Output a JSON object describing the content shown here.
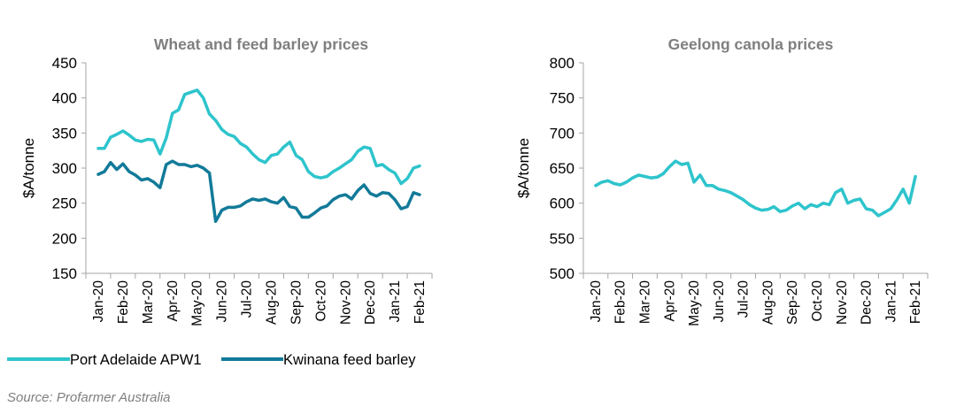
{
  "source": "Source: Profarmer Australia",
  "chart_data": [
    {
      "type": "line",
      "title": "Wheat and feed barley prices",
      "ylabel": "$A/tonne",
      "xlabel": "",
      "ylim": [
        150,
        450
      ],
      "yticks": [
        150,
        200,
        250,
        300,
        350,
        400,
        450
      ],
      "categories": [
        "Jan-20",
        "Feb-20",
        "Mar-20",
        "Apr-20",
        "May-20",
        "Jun-20",
        "Jul-20",
        "Aug-20",
        "Sep-20",
        "Oct-20",
        "Nov-20",
        "Dec-20",
        "Jan-21",
        "Feb-21"
      ],
      "legend_position": "bottom",
      "grid": false,
      "series": [
        {
          "name": "Port Adelaide APW1",
          "color": "#2ec4cc",
          "x": [
            0,
            0.25,
            0.5,
            0.75,
            1,
            1.25,
            1.5,
            1.75,
            2,
            2.25,
            2.5,
            2.75,
            3,
            3.25,
            3.5,
            3.75,
            4,
            4.25,
            4.5,
            4.75,
            5,
            5.25,
            5.5,
            5.75,
            6,
            6.25,
            6.5,
            6.75,
            7,
            7.25,
            7.5,
            7.75,
            8,
            8.25,
            8.5,
            8.75,
            9,
            9.25,
            9.5,
            9.75,
            10,
            10.25,
            10.5,
            10.75,
            11,
            11.25,
            11.5,
            11.75,
            12,
            12.25,
            12.5,
            12.75,
            13
          ],
          "values": [
            328,
            328,
            344,
            348,
            353,
            347,
            340,
            338,
            341,
            340,
            320,
            343,
            378,
            383,
            405,
            408,
            411,
            400,
            377,
            368,
            355,
            348,
            345,
            335,
            330,
            320,
            312,
            308,
            318,
            320,
            330,
            337,
            318,
            312,
            295,
            288,
            286,
            288,
            295,
            300,
            306,
            312,
            324,
            330,
            328,
            303,
            305,
            298,
            293,
            278,
            285,
            300,
            303
          ]
        },
        {
          "name": "Kwinana feed barley",
          "color": "#127a99",
          "x": [
            0,
            0.25,
            0.5,
            0.75,
            1,
            1.25,
            1.5,
            1.75,
            2,
            2.25,
            2.5,
            2.75,
            3,
            3.25,
            3.5,
            3.75,
            4,
            4.25,
            4.5,
            4.75,
            5,
            5.25,
            5.5,
            5.75,
            6,
            6.25,
            6.5,
            6.75,
            7,
            7.25,
            7.5,
            7.75,
            8,
            8.25,
            8.5,
            8.75,
            9,
            9.25,
            9.5,
            9.75,
            10,
            10.25,
            10.5,
            10.75,
            11,
            11.25,
            11.5,
            11.75,
            12,
            12.25,
            12.5,
            12.75,
            13
          ],
          "values": [
            291,
            295,
            308,
            298,
            306,
            295,
            290,
            283,
            285,
            280,
            272,
            305,
            310,
            305,
            305,
            302,
            304,
            300,
            293,
            224,
            240,
            244,
            244,
            246,
            252,
            256,
            254,
            256,
            252,
            250,
            258,
            245,
            243,
            230,
            230,
            236,
            243,
            246,
            255,
            260,
            262,
            256,
            268,
            276,
            264,
            260,
            265,
            264,
            255,
            242,
            245,
            265,
            262
          ]
        }
      ]
    },
    {
      "type": "line",
      "title": "Geelong canola prices",
      "ylabel": "$A/tonne",
      "xlabel": "",
      "ylim": [
        500,
        800
      ],
      "yticks": [
        500,
        550,
        600,
        650,
        700,
        750,
        800
      ],
      "categories": [
        "Jan-20",
        "Feb-20",
        "Mar-20",
        "Apr-20",
        "May-20",
        "Jun-20",
        "Jul-20",
        "Aug-20",
        "Sep-20",
        "Oct-20",
        "Nov-20",
        "Dec-20",
        "Jan-21",
        "Feb-21"
      ],
      "grid": false,
      "series": [
        {
          "color": "#2ec4cc",
          "x": [
            0,
            0.25,
            0.5,
            0.75,
            1,
            1.25,
            1.5,
            1.75,
            2,
            2.25,
            2.5,
            2.75,
            3,
            3.25,
            3.5,
            3.75,
            4,
            4.25,
            4.5,
            4.75,
            5,
            5.25,
            5.5,
            5.75,
            6,
            6.25,
            6.5,
            6.75,
            7,
            7.25,
            7.5,
            7.75,
            8,
            8.25,
            8.5,
            8.75,
            9,
            9.25,
            9.5,
            9.75,
            10,
            10.25,
            10.5,
            10.75,
            11,
            11.25,
            11.5,
            11.75,
            12,
            12.25,
            12.5,
            12.75,
            13
          ],
          "values": [
            625,
            630,
            632,
            628,
            626,
            630,
            636,
            640,
            638,
            636,
            637,
            642,
            652,
            660,
            655,
            657,
            630,
            640,
            625,
            625,
            620,
            618,
            615,
            610,
            605,
            598,
            593,
            590,
            591,
            595,
            588,
            590,
            596,
            600,
            592,
            598,
            595,
            600,
            598,
            615,
            620,
            600,
            604,
            606,
            592,
            590,
            582,
            587,
            592,
            605,
            620,
            600,
            638
          ]
        }
      ]
    }
  ]
}
